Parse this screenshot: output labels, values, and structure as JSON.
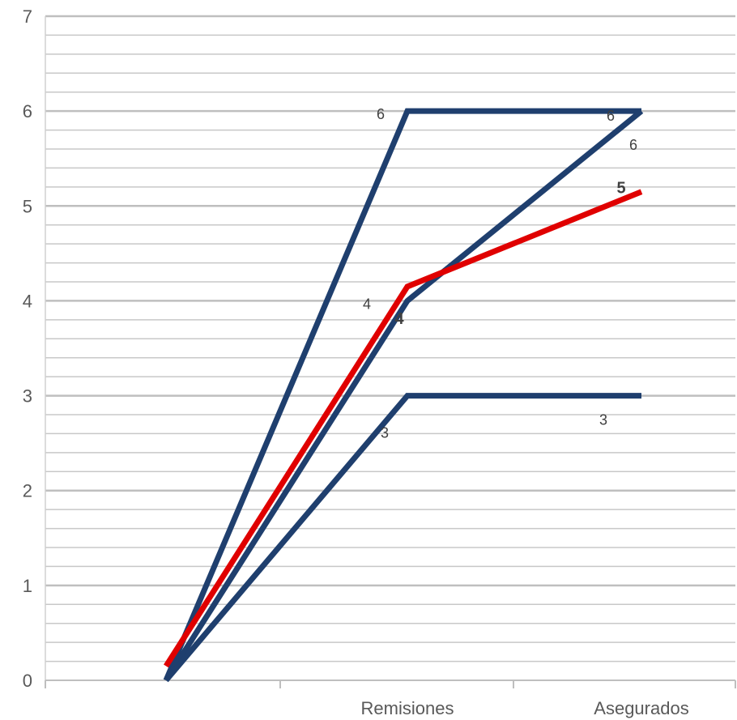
{
  "chart_data": {
    "type": "line",
    "categories": [
      "",
      "Remisiones",
      "Asegurados"
    ],
    "ylim": [
      0,
      7
    ],
    "y_ticks": [
      "0",
      "1",
      "2",
      "3",
      "4",
      "5",
      "6",
      "7"
    ],
    "grid": true,
    "series": [
      {
        "values": [
          0,
          6,
          6
        ],
        "color": "#1f3f6e",
        "labels": [
          "",
          "6",
          "6"
        ]
      },
      {
        "values": [
          0,
          4,
          6
        ],
        "color": "#1f3f6e",
        "labels": [
          "",
          "4",
          "6"
        ]
      },
      {
        "values": [
          0.15,
          4.15,
          5.15
        ],
        "color": "#e00000",
        "labels": [
          "",
          "4",
          "5"
        ],
        "bold_labels": true
      },
      {
        "values": [
          0,
          3,
          3
        ],
        "color": "#1f3f6e",
        "labels": [
          "",
          "3",
          "3"
        ]
      }
    ]
  }
}
